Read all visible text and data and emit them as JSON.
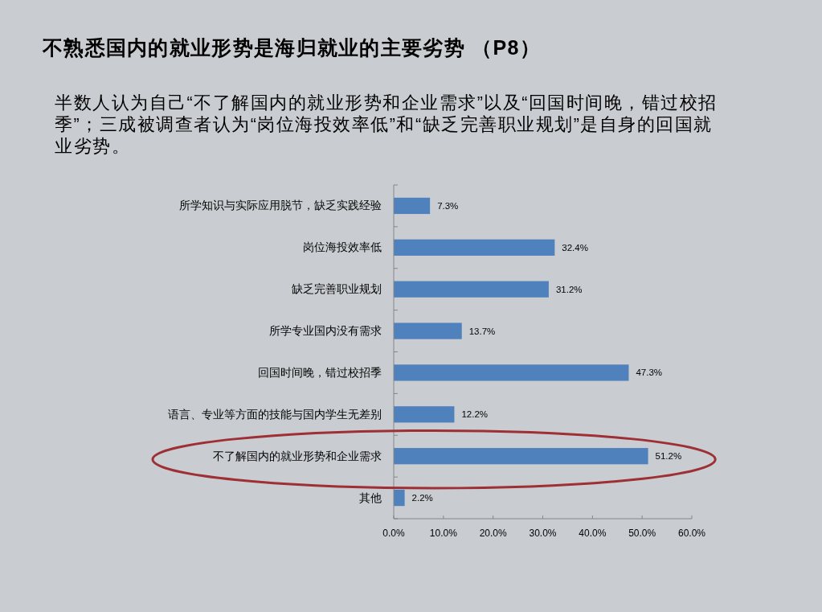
{
  "chart_data": {
    "type": "bar",
    "orientation": "horizontal",
    "title": "不熟悉国内的就业形势是海归就业的主要劣势 （P8）",
    "subtitle": "半数人认为自己“不了解国内的就业形势和企业需求”以及“回国时间晚，错过校招季”；三成被调查者认为“岗位海投效率低”和“缺乏完善职业规划”是自身的回国就业劣势。",
    "categories": [
      "所学知识与实际应用脱节，缺乏实践经验",
      "岗位海投效率低",
      "缺乏完善职业规划",
      "所学专业国内没有需求",
      "回国时间晚，错过校招季",
      "语言、专业等方面的技能与国内学生无差别",
      "不了解国内的就业形势和企业需求",
      "其他"
    ],
    "values": [
      7.3,
      32.4,
      31.2,
      13.7,
      47.3,
      12.2,
      51.2,
      2.2
    ],
    "value_labels": [
      "7.3%",
      "32.4%",
      "31.2%",
      "13.7%",
      "47.3%",
      "12.2%",
      "51.2%",
      "2.2%"
    ],
    "color": "#4f81bd",
    "xlim": [
      0,
      60
    ],
    "xticks": [
      {
        "value": 0,
        "label": "0.0%"
      },
      {
        "value": 10,
        "label": "10.0%"
      },
      {
        "value": 20,
        "label": "20.0%"
      },
      {
        "value": 30,
        "label": "30.0%"
      },
      {
        "value": 40,
        "label": "40.0%"
      },
      {
        "value": 50,
        "label": "50.0%"
      },
      {
        "value": 60,
        "label": "60.0%"
      }
    ]
  }
}
